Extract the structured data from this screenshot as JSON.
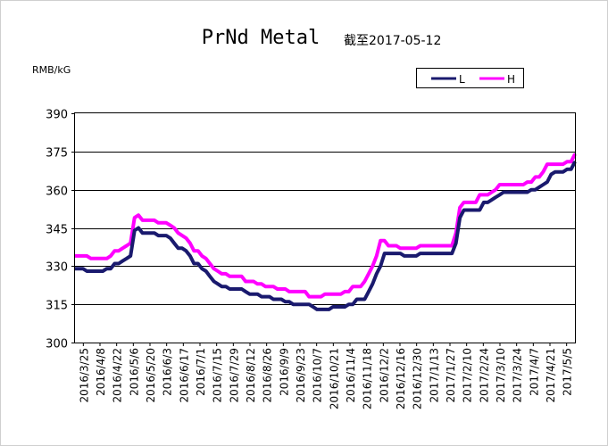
{
  "chart_data": {
    "type": "line",
    "title": "PrNd Metal",
    "subtitle": "截至2017-05-12",
    "ylabel": "RMB/kG",
    "xlabel": "",
    "ylim": [
      300,
      390
    ],
    "yticks": [
      300,
      315,
      330,
      345,
      360,
      375,
      390
    ],
    "grid": true,
    "legend_position": "top-right",
    "categories": [
      "2016/3/25",
      "2016/4/8",
      "2016/4/22",
      "2016/5/6",
      "2016/5/20",
      "2016/6/3",
      "2016/6/17",
      "2016/7/1",
      "2016/7/15",
      "2016/7/29",
      "2016/8/12",
      "2016/8/26",
      "2016/9/9",
      "2016/9/23",
      "2016/10/7",
      "2016/10/21",
      "2016/11/4",
      "2016/11/18",
      "2016/12/2",
      "2016/12/16",
      "2016/12/30",
      "2017/1/13",
      "2017/1/27",
      "2017/2/10",
      "2017/2/24",
      "2017/3/10",
      "2017/3/24",
      "2017/4/7",
      "2017/4/21",
      "2017/5/5"
    ],
    "series": [
      {
        "name": "L",
        "color": "#1a1a6e",
        "points": [
          [
            0,
            329
          ],
          [
            1,
            329
          ],
          [
            2,
            329
          ],
          [
            3,
            328
          ],
          [
            4,
            328
          ],
          [
            5,
            328
          ],
          [
            6,
            328
          ],
          [
            7,
            328
          ],
          [
            8,
            329
          ],
          [
            9,
            329
          ],
          [
            10,
            331
          ],
          [
            11,
            331
          ],
          [
            12,
            332
          ],
          [
            13,
            333
          ],
          [
            14,
            334
          ],
          [
            15,
            344
          ],
          [
            16,
            345
          ],
          [
            17,
            343
          ],
          [
            18,
            343
          ],
          [
            19,
            343
          ],
          [
            20,
            343
          ],
          [
            21,
            342
          ],
          [
            22,
            342
          ],
          [
            23,
            342
          ],
          [
            24,
            341
          ],
          [
            25,
            339
          ],
          [
            26,
            337
          ],
          [
            27,
            337
          ],
          [
            28,
            336
          ],
          [
            29,
            334
          ],
          [
            30,
            331
          ],
          [
            31,
            331
          ],
          [
            32,
            329
          ],
          [
            33,
            328
          ],
          [
            34,
            326
          ],
          [
            35,
            324
          ],
          [
            36,
            323
          ],
          [
            37,
            322
          ],
          [
            38,
            322
          ],
          [
            39,
            321
          ],
          [
            40,
            321
          ],
          [
            41,
            321
          ],
          [
            42,
            321
          ],
          [
            43,
            320
          ],
          [
            44,
            319
          ],
          [
            45,
            319
          ],
          [
            46,
            319
          ],
          [
            47,
            318
          ],
          [
            48,
            318
          ],
          [
            49,
            318
          ],
          [
            50,
            317
          ],
          [
            51,
            317
          ],
          [
            52,
            317
          ],
          [
            53,
            316
          ],
          [
            54,
            316
          ],
          [
            55,
            315
          ],
          [
            56,
            315
          ],
          [
            57,
            315
          ],
          [
            58,
            315
          ],
          [
            59,
            315
          ],
          [
            60,
            314
          ],
          [
            61,
            313
          ],
          [
            62,
            313
          ],
          [
            63,
            313
          ],
          [
            64,
            313
          ],
          [
            65,
            314
          ],
          [
            66,
            314
          ],
          [
            67,
            314
          ],
          [
            68,
            314
          ],
          [
            69,
            315
          ],
          [
            70,
            315
          ],
          [
            71,
            317
          ],
          [
            72,
            317
          ],
          [
            73,
            317
          ],
          [
            74,
            320
          ],
          [
            75,
            323
          ],
          [
            76,
            327
          ],
          [
            77,
            330
          ],
          [
            78,
            335
          ],
          [
            79,
            335
          ],
          [
            80,
            335
          ],
          [
            81,
            335
          ],
          [
            82,
            335
          ],
          [
            83,
            334
          ],
          [
            84,
            334
          ],
          [
            85,
            334
          ],
          [
            86,
            334
          ],
          [
            87,
            335
          ],
          [
            88,
            335
          ],
          [
            89,
            335
          ],
          [
            90,
            335
          ],
          [
            91,
            335
          ],
          [
            92,
            335
          ],
          [
            93,
            335
          ],
          [
            94,
            335
          ],
          [
            95,
            335
          ],
          [
            96,
            339
          ],
          [
            97,
            349
          ],
          [
            98,
            352
          ],
          [
            99,
            352
          ],
          [
            100,
            352
          ],
          [
            101,
            352
          ],
          [
            102,
            352
          ],
          [
            103,
            355
          ],
          [
            104,
            355
          ],
          [
            105,
            356
          ],
          [
            106,
            357
          ],
          [
            107,
            358
          ],
          [
            108,
            359
          ],
          [
            109,
            359
          ],
          [
            110,
            359
          ],
          [
            111,
            359
          ],
          [
            112,
            359
          ],
          [
            113,
            359
          ],
          [
            114,
            359
          ],
          [
            115,
            360
          ],
          [
            116,
            360
          ],
          [
            117,
            361
          ],
          [
            118,
            362
          ],
          [
            119,
            363
          ],
          [
            120,
            366
          ],
          [
            121,
            367
          ],
          [
            122,
            367
          ],
          [
            123,
            367
          ],
          [
            124,
            368
          ],
          [
            125,
            368
          ],
          [
            126,
            371
          ]
        ]
      },
      {
        "name": "H",
        "color": "#ff00ff",
        "points": [
          [
            0,
            334
          ],
          [
            1,
            334
          ],
          [
            2,
            334
          ],
          [
            3,
            334
          ],
          [
            4,
            333
          ],
          [
            5,
            333
          ],
          [
            6,
            333
          ],
          [
            7,
            333
          ],
          [
            8,
            333
          ],
          [
            9,
            334
          ],
          [
            10,
            336
          ],
          [
            11,
            336
          ],
          [
            12,
            337
          ],
          [
            13,
            338
          ],
          [
            14,
            339
          ],
          [
            15,
            349
          ],
          [
            16,
            350
          ],
          [
            17,
            348
          ],
          [
            18,
            348
          ],
          [
            19,
            348
          ],
          [
            20,
            348
          ],
          [
            21,
            347
          ],
          [
            22,
            347
          ],
          [
            23,
            347
          ],
          [
            24,
            346
          ],
          [
            25,
            345
          ],
          [
            26,
            343
          ],
          [
            27,
            342
          ],
          [
            28,
            341
          ],
          [
            29,
            339
          ],
          [
            30,
            336
          ],
          [
            31,
            336
          ],
          [
            32,
            334
          ],
          [
            33,
            333
          ],
          [
            34,
            331
          ],
          [
            35,
            329
          ],
          [
            36,
            328
          ],
          [
            37,
            327
          ],
          [
            38,
            327
          ],
          [
            39,
            326
          ],
          [
            40,
            326
          ],
          [
            41,
            326
          ],
          [
            42,
            326
          ],
          [
            43,
            324
          ],
          [
            44,
            324
          ],
          [
            45,
            324
          ],
          [
            46,
            323
          ],
          [
            47,
            323
          ],
          [
            48,
            322
          ],
          [
            49,
            322
          ],
          [
            50,
            322
          ],
          [
            51,
            321
          ],
          [
            52,
            321
          ],
          [
            53,
            321
          ],
          [
            54,
            320
          ],
          [
            55,
            320
          ],
          [
            56,
            320
          ],
          [
            57,
            320
          ],
          [
            58,
            320
          ],
          [
            59,
            318
          ],
          [
            60,
            318
          ],
          [
            61,
            318
          ],
          [
            62,
            318
          ],
          [
            63,
            319
          ],
          [
            64,
            319
          ],
          [
            65,
            319
          ],
          [
            66,
            319
          ],
          [
            67,
            319
          ],
          [
            68,
            320
          ],
          [
            69,
            320
          ],
          [
            70,
            322
          ],
          [
            71,
            322
          ],
          [
            72,
            322
          ],
          [
            73,
            324
          ],
          [
            74,
            327
          ],
          [
            75,
            330
          ],
          [
            76,
            334
          ],
          [
            77,
            340
          ],
          [
            78,
            340
          ],
          [
            79,
            338
          ],
          [
            80,
            338
          ],
          [
            81,
            338
          ],
          [
            82,
            337
          ],
          [
            83,
            337
          ],
          [
            84,
            337
          ],
          [
            85,
            337
          ],
          [
            86,
            337
          ],
          [
            87,
            338
          ],
          [
            88,
            338
          ],
          [
            89,
            338
          ],
          [
            90,
            338
          ],
          [
            91,
            338
          ],
          [
            92,
            338
          ],
          [
            93,
            338
          ],
          [
            94,
            338
          ],
          [
            95,
            338
          ],
          [
            96,
            343
          ],
          [
            97,
            353
          ],
          [
            98,
            355
          ],
          [
            99,
            355
          ],
          [
            100,
            355
          ],
          [
            101,
            355
          ],
          [
            102,
            358
          ],
          [
            103,
            358
          ],
          [
            104,
            358
          ],
          [
            105,
            359
          ],
          [
            106,
            360
          ],
          [
            107,
            362
          ],
          [
            108,
            362
          ],
          [
            109,
            362
          ],
          [
            110,
            362
          ],
          [
            111,
            362
          ],
          [
            112,
            362
          ],
          [
            113,
            362
          ],
          [
            114,
            363
          ],
          [
            115,
            363
          ],
          [
            116,
            365
          ],
          [
            117,
            365
          ],
          [
            118,
            367
          ],
          [
            119,
            370
          ],
          [
            120,
            370
          ],
          [
            121,
            370
          ],
          [
            122,
            370
          ],
          [
            123,
            370
          ],
          [
            124,
            371
          ],
          [
            125,
            371
          ],
          [
            126,
            374
          ]
        ]
      }
    ]
  }
}
